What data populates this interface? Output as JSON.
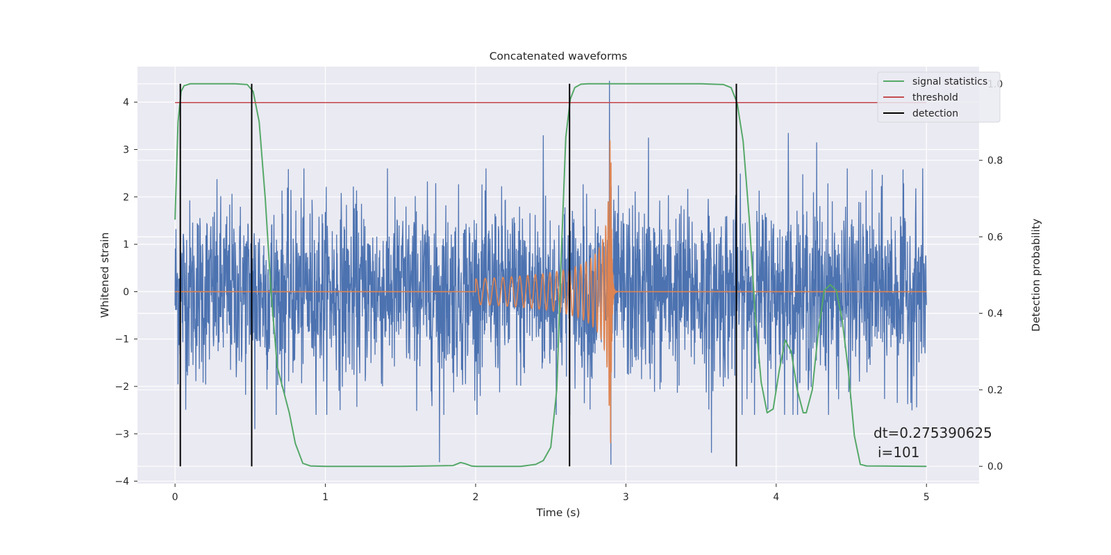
{
  "chart_data": {
    "type": "line",
    "title": "Concatenated waveforms",
    "xlabel": "Time (s)",
    "ylabel": "Whitened strain",
    "ylabel_right": "Detection probability",
    "xlim": [
      -0.25,
      5.35
    ],
    "ylim": [
      -4.05,
      4.75
    ],
    "ylim_right": [
      -0.045,
      1.045
    ],
    "xticks": [
      0,
      1,
      2,
      3,
      4,
      5
    ],
    "yticks": [
      -4,
      -3,
      -2,
      -1,
      0,
      1,
      2,
      3,
      4
    ],
    "yticks_right": [
      0.0,
      0.2,
      0.4,
      0.6,
      0.8,
      1.0
    ],
    "xtick_labels": [
      "0",
      "1",
      "2",
      "3",
      "4",
      "5"
    ],
    "ytick_labels": [
      "−4",
      "−3",
      "−2",
      "−1",
      "0",
      "1",
      "2",
      "3",
      "4"
    ],
    "ytick_right_labels": [
      "0.0",
      "0.2",
      "0.4",
      "0.6",
      "0.8",
      "1.0"
    ],
    "grid": true,
    "legend_position": "top-right",
    "colors": {
      "background": "#eaeaf2",
      "grid": "#ffffff",
      "strain": "#4c72b0",
      "template": "#dd8452",
      "signal_statistics": "#55a868",
      "threshold": "#c44e52",
      "detection": "#000000"
    },
    "series": [
      {
        "name": "signal statistics",
        "axis": "right",
        "x": [
          0.0,
          0.02,
          0.04,
          0.06,
          0.1,
          0.2,
          0.3,
          0.4,
          0.48,
          0.52,
          0.56,
          0.6,
          0.64,
          0.68,
          0.72,
          0.76,
          0.8,
          0.85,
          0.9,
          1.0,
          1.5,
          1.85,
          1.9,
          1.93,
          1.97,
          2.0,
          2.3,
          2.4,
          2.45,
          2.5,
          2.54,
          2.57,
          2.6,
          2.63,
          2.66,
          2.7,
          2.75,
          2.8,
          3.0,
          3.5,
          3.65,
          3.7,
          3.74,
          3.78,
          3.82,
          3.86,
          3.9,
          3.94,
          3.98,
          4.02,
          4.06,
          4.1,
          4.14,
          4.18,
          4.2,
          4.24,
          4.28,
          4.32,
          4.36,
          4.4,
          4.44,
          4.48,
          4.52,
          4.56,
          4.6,
          5.0
        ],
        "values": [
          0.645,
          0.9,
          0.98,
          0.995,
          1.0,
          1.0,
          1.0,
          1.0,
          0.998,
          0.98,
          0.9,
          0.7,
          0.45,
          0.26,
          0.2,
          0.14,
          0.06,
          0.008,
          0.001,
          0.0,
          0.0,
          0.002,
          0.01,
          0.007,
          0.001,
          0.0,
          0.0,
          0.005,
          0.015,
          0.05,
          0.2,
          0.55,
          0.86,
          0.96,
          0.99,
          0.999,
          1.0,
          1.0,
          1.0,
          1.0,
          0.998,
          0.99,
          0.95,
          0.85,
          0.65,
          0.4,
          0.22,
          0.14,
          0.15,
          0.25,
          0.33,
          0.3,
          0.2,
          0.14,
          0.14,
          0.2,
          0.35,
          0.46,
          0.475,
          0.46,
          0.38,
          0.25,
          0.08,
          0.005,
          0.001,
          0.0
        ]
      },
      {
        "name": "threshold",
        "axis": "right",
        "x": [
          0.0,
          5.0
        ],
        "values": [
          0.951,
          0.951
        ]
      },
      {
        "name": "detection",
        "axis": "right",
        "type": "vlines",
        "x": [
          0.035,
          0.51,
          2.625,
          3.735
        ],
        "ymin": 0.0,
        "ymax": 1.0
      },
      {
        "name": "",
        "axis": "left",
        "description_kind": "strain noise",
        "x_range": [
          0.0,
          5.0
        ],
        "amplitude_envelope": 2.6,
        "extremes": [
          {
            "x": 0.51,
            "y": 3.55
          },
          {
            "x": 0.53,
            "y": -2.9
          },
          {
            "x": 1.76,
            "y": -3.6
          },
          {
            "x": 2.45,
            "y": 3.3
          },
          {
            "x": 2.89,
            "y": 4.45
          },
          {
            "x": 2.9,
            "y": -3.65
          },
          {
            "x": 3.15,
            "y": 3.25
          },
          {
            "x": 3.57,
            "y": -3.4
          },
          {
            "x": 4.08,
            "y": 3.35
          },
          {
            "x": 4.27,
            "y": 3.15
          }
        ]
      },
      {
        "name": "",
        "axis": "left",
        "description_kind": "chirp template",
        "x_start": 2.0,
        "x_merger": 2.9,
        "x_end": 5.0,
        "peak_amplitude": 3.2
      }
    ],
    "annotation": {
      "line1": "dt=0.275390625",
      "line2": "i=101"
    }
  }
}
